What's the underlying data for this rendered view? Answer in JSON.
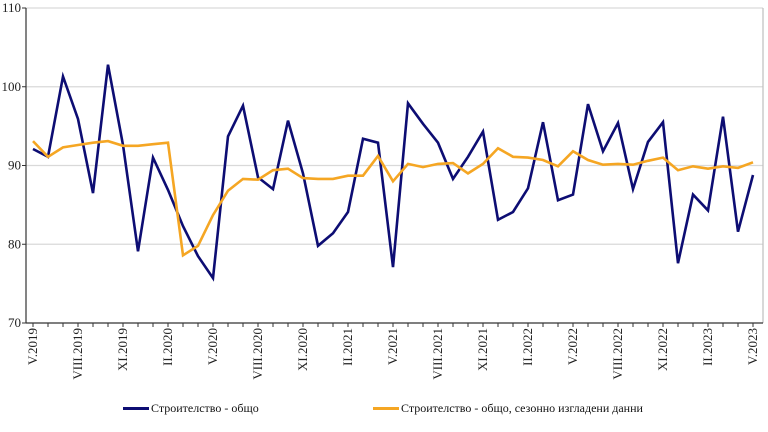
{
  "chart_data": {
    "type": "line",
    "title": "",
    "xlabel": "",
    "ylabel": "",
    "ylim": [
      70,
      110
    ],
    "yticks": [
      70,
      80,
      90,
      100,
      110
    ],
    "grid": true,
    "legend_position": "bottom",
    "x": [
      "V.2019",
      "VI.2019",
      "VII.2019",
      "VIII.2019",
      "IX.2019",
      "X.2019",
      "XI.2019",
      "XII.2019",
      "I.2020",
      "II.2020",
      "III.2020",
      "IV.2020",
      "V.2020",
      "VI.2020",
      "VII.2020",
      "VIII.2020",
      "IX.2020",
      "X.2020",
      "XI.2020",
      "XII.2020",
      "I.2021",
      "II.2021",
      "III.2021",
      "IV.2021",
      "V.2021",
      "VI.2021",
      "VII.2021",
      "VIII.2021",
      "IX.2021",
      "X.2021",
      "XI.2021",
      "XII.2021",
      "I.2022",
      "II.2022",
      "III.2022",
      "IV.2022",
      "V.2022",
      "VI.2022",
      "VII.2022",
      "VIII.2022",
      "IX.2022",
      "X.2022",
      "XI.2022",
      "XII.2022",
      "I.2023",
      "II.2023",
      "III.2023",
      "IV.2023",
      "V.2023"
    ],
    "xtick_labels": [
      "V.2019",
      "VIII.2019",
      "XI.2019",
      "II.2020",
      "V.2020",
      "VIII.2020",
      "XI.2020",
      "II.2021",
      "V.2021",
      "VIII.2021",
      "XI.2021",
      "II.2022",
      "V.2022",
      "VIII.2022",
      "XI.2022",
      "II.2023",
      "V.2023"
    ],
    "series": [
      {
        "name": "Строителство - общо",
        "color": "#0d0d73",
        "values": [
          92.1,
          91.1,
          101.3,
          95.9,
          86.5,
          102.8,
          92.6,
          79.1,
          91.0,
          86.9,
          82.3,
          78.5,
          75.7,
          93.7,
          97.6,
          88.5,
          87.0,
          95.7,
          89.0,
          79.8,
          81.4,
          84.1,
          93.4,
          92.9,
          77.1,
          97.9,
          95.3,
          92.9,
          88.3,
          91.1,
          94.3,
          83.1,
          84.1,
          87.1,
          95.5,
          85.6,
          86.3,
          97.8,
          91.8,
          95.4,
          87.0,
          93.0,
          95.5,
          77.6,
          86.3,
          84.3,
          96.2,
          81.6,
          88.8
        ]
      },
      {
        "name": "Строителство - общо, сезонно изгладени данни",
        "color": "#f5a623",
        "values": [
          93.1,
          91.1,
          92.3,
          92.6,
          92.9,
          93.1,
          92.5,
          92.5,
          92.7,
          92.9,
          78.6,
          79.8,
          83.7,
          86.8,
          88.3,
          88.2,
          89.4,
          89.6,
          88.4,
          88.3,
          88.3,
          88.7,
          88.7,
          91.2,
          88.0,
          90.2,
          89.8,
          90.2,
          90.3,
          89.0,
          90.2,
          92.2,
          91.1,
          91.0,
          90.7,
          89.9,
          91.8,
          90.7,
          90.1,
          90.2,
          90.1,
          90.6,
          91.0,
          89.4,
          89.9,
          89.6,
          89.9,
          89.7,
          90.4
        ]
      }
    ]
  },
  "legend": {
    "items": [
      {
        "label": "Строителство - общо",
        "color": "#0d0d73"
      },
      {
        "label": "Строителство - общо, сезонно изгладени данни",
        "color": "#f5a623"
      }
    ]
  },
  "colors": {
    "grid": "#d9d9d9",
    "axis": "#333333",
    "frame": "#bfbfbf"
  }
}
